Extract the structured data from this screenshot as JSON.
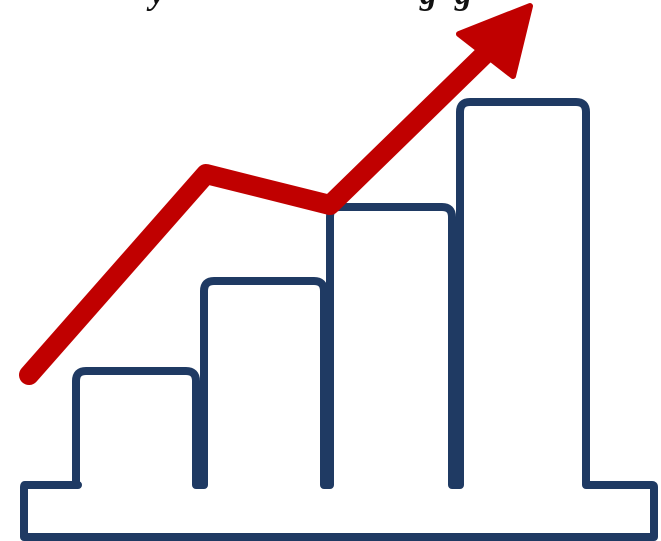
{
  "caption": {
    "word1": "y",
    "word2": "g",
    "word3": "g"
  },
  "colors": {
    "outline": "#1f3a63",
    "arrow": "#c00000",
    "background": "#ffffff"
  },
  "icon": {
    "name": "growth-bar-chart-with-arrow-icon",
    "bar_levels": [
      0.35,
      0.52,
      0.66,
      0.86
    ],
    "bar_count": 4
  }
}
